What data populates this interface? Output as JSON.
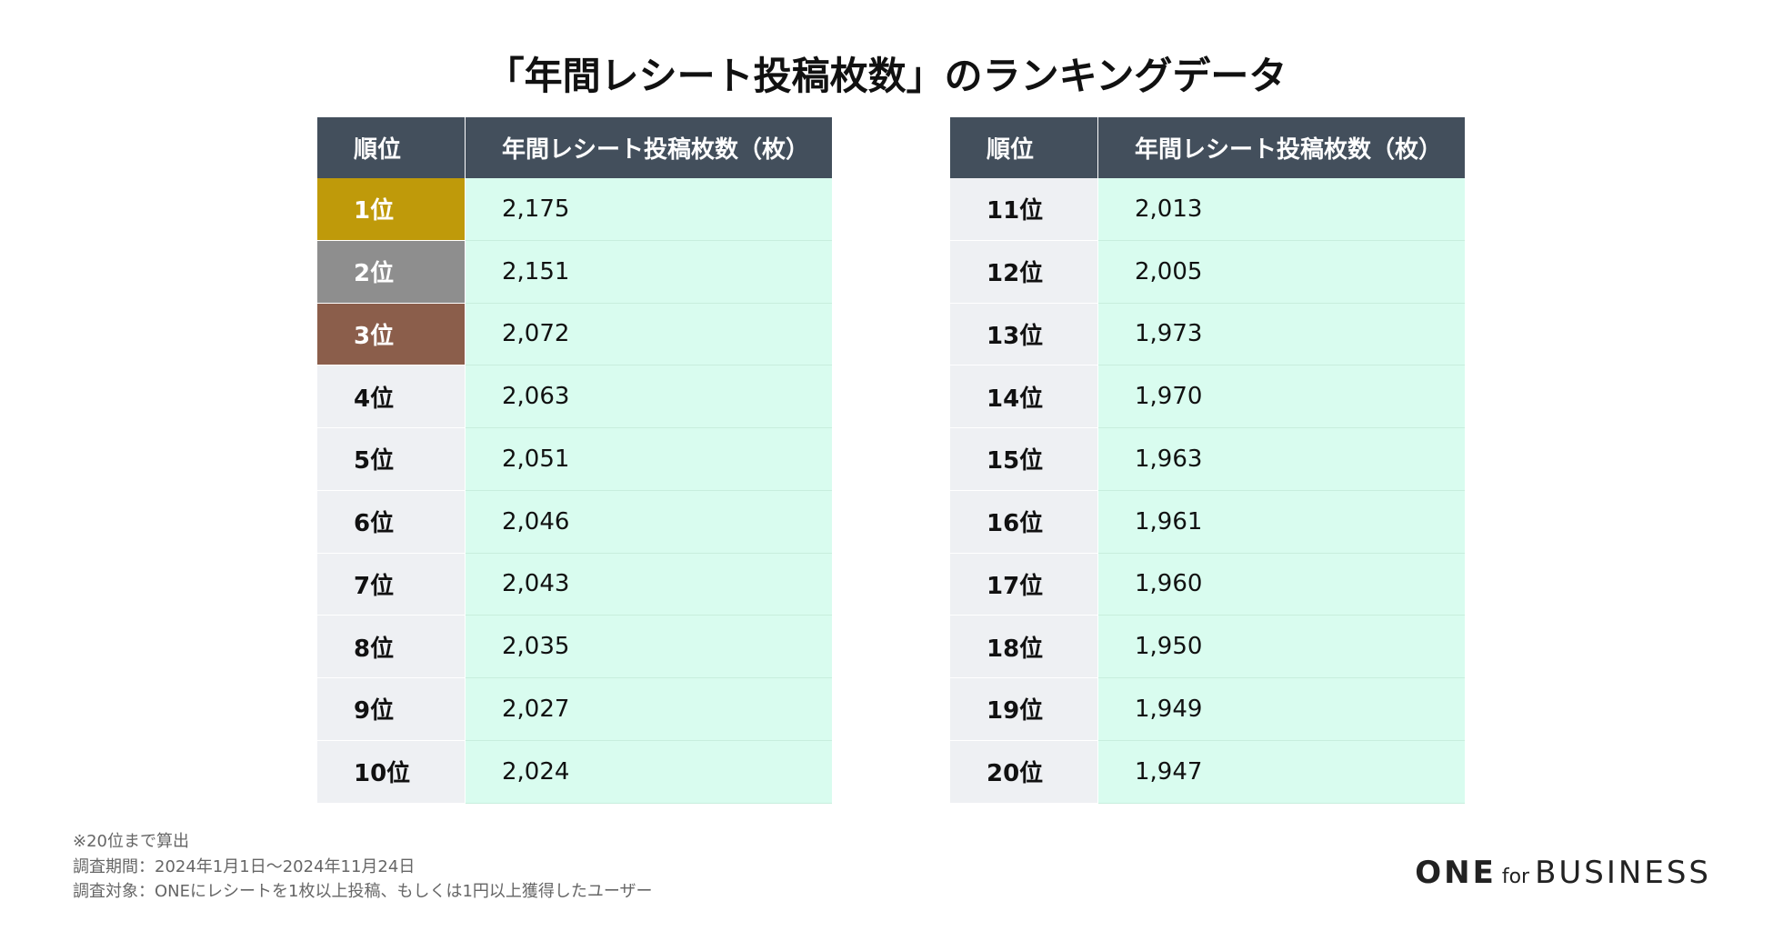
{
  "title": "「年間レシート投稿枚数」のランキングデータ",
  "tables": [
    {
      "headers": [
        "順位",
        "年間レシート投稿枚数（枚）"
      ],
      "rows": [
        [
          "1位",
          "2,175"
        ],
        [
          "2位",
          "2,151"
        ],
        [
          "3位",
          "2,072"
        ],
        [
          "4位",
          "2,063"
        ],
        [
          "5位",
          "2,051"
        ],
        [
          "6位",
          "2,046"
        ],
        [
          "7位",
          "2,043"
        ],
        [
          "8位",
          "2,035"
        ],
        [
          "9位",
          "2,027"
        ],
        [
          "10位",
          "2,024"
        ]
      ]
    },
    {
      "headers": [
        "順位",
        "年間レシート投稿枚数（枚）"
      ],
      "rows": [
        [
          "11位",
          "2,013"
        ],
        [
          "12位",
          "2,005"
        ],
        [
          "13位",
          "1,973"
        ],
        [
          "14位",
          "1,970"
        ],
        [
          "15位",
          "1,963"
        ],
        [
          "16位",
          "1,961"
        ],
        [
          "17位",
          "1,960"
        ],
        [
          "18位",
          "1,950"
        ],
        [
          "19位",
          "1,949"
        ],
        [
          "20位",
          "1,947"
        ]
      ]
    }
  ],
  "footnotes": [
    "※20位まで算出",
    "調査期間：2024年1月1日〜2024年11月24日",
    "調査対象：ONEにレシートを1枚以上投稿、もしくは1円以上獲得したユーザー"
  ],
  "logo": {
    "main": "ONE",
    "for": "for",
    "sub": "BUSINESS"
  }
}
